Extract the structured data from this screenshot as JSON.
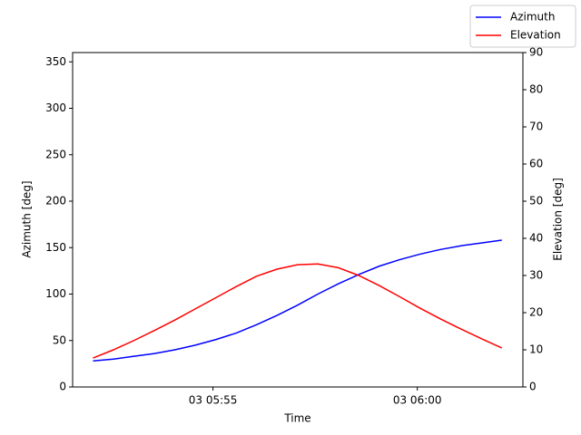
{
  "chart_data": {
    "type": "line",
    "x_label": "Time",
    "y_label": "Azimuth [deg]",
    "y2_label": "Elevation [deg]",
    "x": [
      "03 05:52:04",
      "03 05:52:34",
      "03 05:53:04",
      "03 05:53:34",
      "03 05:54:04",
      "03 05:54:34",
      "03 05:55:04",
      "03 05:55:34",
      "03 05:56:04",
      "03 05:56:34",
      "03 05:57:04",
      "03 05:57:34",
      "03 05:58:04",
      "03 05:58:34",
      "03 05:59:04",
      "03 05:59:34",
      "03 06:00:04",
      "03 06:00:34",
      "03 06:01:04",
      "03 06:01:34",
      "03 06:02:04"
    ],
    "series": [
      {
        "name": "Azimuth",
        "color": "#0000ff",
        "values": [
          28,
          30,
          33,
          36,
          40,
          45,
          51,
          58,
          67,
          77,
          88,
          100,
          111,
          121,
          130,
          137,
          143,
          148,
          152,
          155,
          158
        ]
      },
      {
        "name": "Elevation",
        "color": "#ff0000",
        "axis": "y2",
        "values": [
          7.8,
          10.0,
          12.5,
          15.2,
          18.0,
          21.0,
          24.0,
          27.0,
          29.8,
          31.7,
          32.9,
          33.1,
          32.1,
          30.0,
          27.3,
          24.3,
          21.2,
          18.3,
          15.6,
          13.0,
          10.5
        ]
      }
    ],
    "xlim": [
      "03 05:51:34",
      "03 06:02:35"
    ],
    "xticks": [
      {
        "value": "03 05:55:00",
        "label": "03 05:55"
      },
      {
        "value": "03 06:00:00",
        "label": "03 06:00"
      }
    ],
    "ylim": [
      0,
      360
    ],
    "yticks": [
      0,
      50,
      100,
      150,
      200,
      250,
      300,
      350
    ],
    "y2lim": [
      0,
      90
    ],
    "y2ticks": [
      0,
      10,
      20,
      30,
      40,
      50,
      60,
      70,
      80,
      90
    ],
    "grid": false,
    "legend": "upper right"
  }
}
